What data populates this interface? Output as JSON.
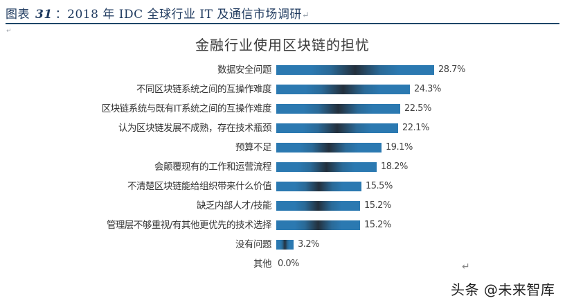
{
  "caption": {
    "prefix": "图表",
    "number": "31",
    "text": "：2018 年  IDC 全球行业  IT 及通信市场调研",
    "return_mark": "↵"
  },
  "watermark": "头条 @未来智库",
  "chart_data": {
    "type": "bar",
    "orientation": "horizontal",
    "title": "金融行业使用区块链的担忧",
    "xlabel": "",
    "ylabel": "",
    "categories": [
      "数据安全问题",
      "不同区块链系统之间的互操作难度",
      "区块链系统与既有IT系统之间的互操作难度",
      "认为区块链发展不成熟，存在技术瓶颈",
      "预算不足",
      "会颠覆现有的工作和运营流程",
      "不清楚区块链能给组织带来什么价值",
      "缺乏内部人才/技能",
      "管理层不够重视/有其他更优先的技术选择",
      "没有问题",
      "其他"
    ],
    "values": [
      28.7,
      24.3,
      22.5,
      22.1,
      19.1,
      18.2,
      15.5,
      15.2,
      15.2,
      3.2,
      0.0
    ],
    "value_labels": [
      "28.7%",
      "24.3%",
      "22.5%",
      "22.1%",
      "19.1%",
      "18.2%",
      "15.5%",
      "15.2%",
      "15.2%",
      "3.2%",
      "0.0%"
    ],
    "unit": "%",
    "grid": false,
    "legend": null,
    "bar_color": "#2b79b1",
    "bar_center_color": "#23303d"
  }
}
